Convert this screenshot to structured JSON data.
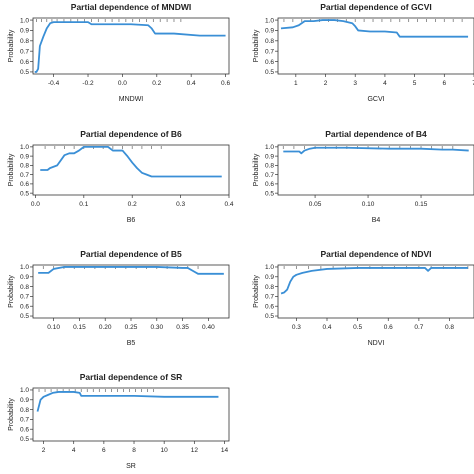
{
  "chart_data": [
    {
      "type": "line",
      "title": "Partial dependence of MNDWI",
      "xlabel": "MNDWI",
      "ylabel": "Probability",
      "xlim": [
        -0.52,
        0.62
      ],
      "ylim": [
        0.48,
        1.02
      ],
      "xticks": [
        -0.4,
        -0.2,
        0.0,
        0.2,
        0.4,
        0.6
      ],
      "xtick_labels": [
        "-0.4",
        "-0.2",
        "0.0",
        "0.2",
        "0.4",
        "0.6"
      ],
      "yticks": [
        0.5,
        0.6,
        0.7,
        0.8,
        0.9,
        1.0
      ],
      "ytick_labels": [
        "0.5",
        "0.6",
        "0.7",
        "0.8",
        "0.9",
        "1.0"
      ],
      "x": [
        -0.51,
        -0.5,
        -0.49,
        -0.48,
        -0.46,
        -0.44,
        -0.42,
        -0.4,
        -0.38,
        -0.2,
        -0.18,
        -0.1,
        0.05,
        0.15,
        0.17,
        0.19,
        0.3,
        0.45,
        0.6
      ],
      "y": [
        0.5,
        0.5,
        0.53,
        0.75,
        0.84,
        0.92,
        0.97,
        0.98,
        0.98,
        0.98,
        0.96,
        0.96,
        0.96,
        0.95,
        0.92,
        0.87,
        0.87,
        0.85,
        0.85
      ],
      "rug": [
        -0.5,
        -0.47,
        -0.44,
        -0.41,
        -0.38,
        -0.34,
        -0.3,
        -0.26,
        -0.22,
        -0.18,
        -0.14,
        -0.1,
        -0.06,
        -0.02,
        0.02,
        0.06,
        0.1,
        0.14,
        0.18,
        0.22,
        0.26,
        0.3,
        0.34
      ]
    },
    {
      "type": "line",
      "title": "Partial dependence of GCVI",
      "xlabel": "GCVI",
      "ylabel": "Probability",
      "xlim": [
        0.4,
        7.0
      ],
      "ylim": [
        0.48,
        1.02
      ],
      "xticks": [
        1,
        2,
        3,
        4,
        5,
        6,
        7
      ],
      "xtick_labels": [
        "1",
        "2",
        "3",
        "4",
        "5",
        "6",
        "7"
      ],
      "yticks": [
        0.5,
        0.6,
        0.7,
        0.8,
        0.9,
        1.0
      ],
      "ytick_labels": [
        "0.5",
        "0.6",
        "0.7",
        "0.8",
        "0.9",
        "1.0"
      ],
      "x": [
        0.5,
        0.9,
        1.1,
        1.3,
        1.6,
        1.9,
        2.3,
        2.6,
        2.9,
        3.0,
        3.1,
        3.5,
        4.0,
        4.4,
        4.5,
        5.0,
        6.0,
        6.8
      ],
      "y": [
        0.92,
        0.93,
        0.95,
        0.99,
        0.99,
        1.0,
        1.0,
        0.99,
        0.97,
        0.94,
        0.9,
        0.89,
        0.89,
        0.88,
        0.84,
        0.84,
        0.84,
        0.84
      ],
      "rug": [
        0.6,
        0.9,
        1.2,
        1.5,
        1.8,
        2.1,
        2.4,
        2.7,
        3.0,
        3.3,
        3.6,
        3.9,
        4.2,
        4.5,
        4.8,
        5.1,
        5.4,
        5.7,
        6.0,
        6.3,
        6.6
      ]
    },
    {
      "type": "line",
      "title": "Partial dependence of B6",
      "xlabel": "B6",
      "ylabel": "Probability",
      "xlim": [
        -0.005,
        0.4
      ],
      "ylim": [
        0.48,
        1.02
      ],
      "xticks": [
        0.0,
        0.1,
        0.2,
        0.3,
        0.4
      ],
      "xtick_labels": [
        "0.0",
        "0.1",
        "0.2",
        "0.3",
        "0.4"
      ],
      "yticks": [
        0.5,
        0.6,
        0.7,
        0.8,
        0.9,
        1.0
      ],
      "ytick_labels": [
        "0.5",
        "0.6",
        "0.7",
        "0.8",
        "0.9",
        "1.0"
      ],
      "x": [
        0.01,
        0.025,
        0.03,
        0.045,
        0.06,
        0.07,
        0.08,
        0.09,
        0.1,
        0.15,
        0.16,
        0.18,
        0.19,
        0.2,
        0.21,
        0.22,
        0.23,
        0.24,
        0.26,
        0.3,
        0.385
      ],
      "y": [
        0.75,
        0.75,
        0.77,
        0.8,
        0.91,
        0.93,
        0.93,
        0.96,
        1.0,
        1.0,
        0.96,
        0.96,
        0.9,
        0.83,
        0.77,
        0.72,
        0.7,
        0.68,
        0.68,
        0.68,
        0.68
      ],
      "rug": [
        0.02,
        0.04,
        0.06,
        0.08,
        0.1,
        0.12,
        0.14,
        0.16,
        0.18,
        0.2,
        0.22,
        0.24,
        0.26
      ]
    },
    {
      "type": "line",
      "title": "Partial dependence of B4",
      "xlabel": "B4",
      "ylabel": "Probability",
      "xlim": [
        0.015,
        0.2
      ],
      "ylim": [
        0.48,
        1.02
      ],
      "xticks": [
        0.05,
        0.1,
        0.15
      ],
      "xtick_labels": [
        "0.05",
        "0.10",
        "0.15"
      ],
      "yticks": [
        0.5,
        0.6,
        0.7,
        0.8,
        0.9,
        1.0
      ],
      "ytick_labels": [
        "0.5",
        "0.6",
        "0.7",
        "0.8",
        "0.9",
        "1.0"
      ],
      "x": [
        0.02,
        0.035,
        0.037,
        0.04,
        0.045,
        0.05,
        0.08,
        0.12,
        0.15,
        0.17,
        0.18,
        0.195
      ],
      "y": [
        0.95,
        0.95,
        0.93,
        0.96,
        0.98,
        0.99,
        0.99,
        0.98,
        0.98,
        0.97,
        0.97,
        0.96
      ],
      "rug": [
        0.02,
        0.03,
        0.04,
        0.05,
        0.06,
        0.07,
        0.08,
        0.09,
        0.1,
        0.11,
        0.12,
        0.13,
        0.14,
        0.15,
        0.16,
        0.17,
        0.18
      ]
    },
    {
      "type": "line",
      "title": "Partial dependence of B5",
      "xlabel": "B5",
      "ylabel": "Probability",
      "xlim": [
        0.06,
        0.44
      ],
      "ylim": [
        0.48,
        1.02
      ],
      "xticks": [
        0.1,
        0.15,
        0.2,
        0.25,
        0.3,
        0.35,
        0.4
      ],
      "xtick_labels": [
        "0.10",
        "0.15",
        "0.20",
        "0.25",
        "0.30",
        "0.35",
        "0.40"
      ],
      "yticks": [
        0.5,
        0.6,
        0.7,
        0.8,
        0.9,
        1.0
      ],
      "ytick_labels": [
        "0.5",
        "0.6",
        "0.7",
        "0.8",
        "0.9",
        "1.0"
      ],
      "x": [
        0.07,
        0.09,
        0.1,
        0.12,
        0.2,
        0.3,
        0.35,
        0.36,
        0.37,
        0.38,
        0.4,
        0.43
      ],
      "y": [
        0.94,
        0.94,
        0.98,
        1.0,
        1.0,
        1.0,
        0.99,
        0.99,
        0.96,
        0.93,
        0.93,
        0.93
      ],
      "rug": [
        0.08,
        0.1,
        0.12,
        0.14,
        0.16,
        0.18,
        0.2,
        0.22,
        0.24,
        0.26,
        0.28,
        0.3,
        0.32,
        0.34,
        0.36,
        0.38
      ]
    },
    {
      "type": "line",
      "title": "Partial dependence of NDVI",
      "xlabel": "NDVI",
      "ylabel": "Probability",
      "xlim": [
        0.24,
        0.88
      ],
      "ylim": [
        0.48,
        1.02
      ],
      "xticks": [
        0.3,
        0.4,
        0.5,
        0.6,
        0.7,
        0.8
      ],
      "xtick_labels": [
        "0.3",
        "0.4",
        "0.5",
        "0.6",
        "0.7",
        "0.8"
      ],
      "yticks": [
        0.5,
        0.6,
        0.7,
        0.8,
        0.9,
        1.0
      ],
      "ytick_labels": [
        "0.5",
        "0.6",
        "0.7",
        "0.8",
        "0.9",
        "1.0"
      ],
      "x": [
        0.25,
        0.26,
        0.27,
        0.28,
        0.29,
        0.3,
        0.32,
        0.35,
        0.4,
        0.5,
        0.6,
        0.72,
        0.73,
        0.74,
        0.8,
        0.86
      ],
      "y": [
        0.73,
        0.74,
        0.77,
        0.85,
        0.9,
        0.92,
        0.94,
        0.96,
        0.98,
        0.99,
        0.99,
        0.99,
        0.96,
        0.99,
        0.99,
        0.99
      ],
      "rug": [
        0.26,
        0.3,
        0.34,
        0.38,
        0.42,
        0.46,
        0.5,
        0.54,
        0.58,
        0.62,
        0.66,
        0.7,
        0.74,
        0.78,
        0.82,
        0.86
      ]
    },
    {
      "type": "line",
      "title": "Partial dependence of SR",
      "xlabel": "SR",
      "ylabel": "Probability",
      "xlim": [
        1.3,
        14.3
      ],
      "ylim": [
        0.48,
        1.02
      ],
      "xticks": [
        2,
        4,
        6,
        8,
        10,
        12,
        14
      ],
      "xtick_labels": [
        "2",
        "4",
        "6",
        "8",
        "10",
        "12",
        "14"
      ],
      "yticks": [
        0.5,
        0.6,
        0.7,
        0.8,
        0.9,
        1.0
      ],
      "ytick_labels": [
        "0.5",
        "0.6",
        "0.7",
        "0.8",
        "0.9",
        "1.0"
      ],
      "x": [
        1.6,
        1.8,
        2.0,
        2.3,
        2.6,
        3.0,
        4.0,
        4.4,
        4.5,
        5.0,
        8.0,
        10.0,
        13.6
      ],
      "y": [
        0.78,
        0.9,
        0.93,
        0.95,
        0.97,
        0.98,
        0.98,
        0.97,
        0.94,
        0.94,
        0.94,
        0.93,
        0.93
      ],
      "rug": [
        1.7,
        2.1,
        2.5,
        2.9,
        3.3,
        3.7,
        4.1,
        4.5,
        4.9,
        5.3,
        5.7,
        6.1,
        6.5,
        6.9,
        7.3,
        7.7,
        8.1,
        8.5,
        8.9,
        9.3
      ]
    }
  ],
  "colors": {
    "line": "#3a8fd6",
    "axis": "#333333",
    "rug": "#777777"
  }
}
